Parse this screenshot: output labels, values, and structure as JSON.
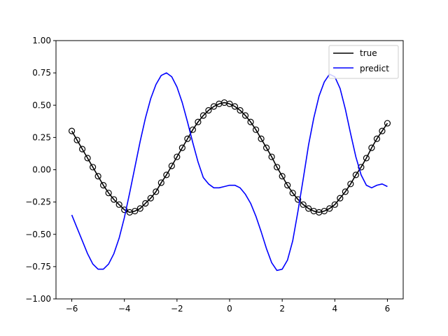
{
  "chart_data": {
    "type": "line",
    "title": "",
    "xlabel": "",
    "ylabel": "",
    "xlim": [
      -6.6,
      6.6
    ],
    "ylim": [
      -1.0,
      1.0
    ],
    "xticks": [
      -6,
      -4,
      -2,
      0,
      2,
      4,
      6
    ],
    "xtick_labels": [
      "−6",
      "−4",
      "−2",
      "0",
      "2",
      "4",
      "6"
    ],
    "yticks": [
      -1.0,
      -0.75,
      -0.5,
      -0.25,
      0.0,
      0.25,
      0.5,
      0.75,
      1.0
    ],
    "ytick_labels": [
      "−1.00",
      "−0.75",
      "−0.50",
      "−0.25",
      "0.00",
      "0.25",
      "0.50",
      "0.75",
      "1.00"
    ],
    "grid": false,
    "legend": "top-right",
    "series": [
      {
        "name": "true",
        "color": "#000000",
        "markers": "open-circle",
        "x": [
          -6.0,
          -5.8,
          -5.6,
          -5.4,
          -5.2,
          -5.0,
          -4.8,
          -4.6,
          -4.4,
          -4.2,
          -4.0,
          -3.8,
          -3.6,
          -3.4,
          -3.2,
          -3.0,
          -2.8,
          -2.6,
          -2.4,
          -2.2,
          -2.0,
          -1.8,
          -1.6,
          -1.4,
          -1.2,
          -1.0,
          -0.8,
          -0.6,
          -0.4,
          -0.2,
          0.0,
          0.2,
          0.4,
          0.6,
          0.8,
          1.0,
          1.2,
          1.4,
          1.6,
          1.8,
          2.0,
          2.2,
          2.4,
          2.6,
          2.8,
          3.0,
          3.2,
          3.4,
          3.6,
          3.8,
          4.0,
          4.2,
          4.4,
          4.6,
          4.8,
          5.0,
          5.2,
          5.4,
          5.6,
          5.8,
          6.0
        ],
        "y": [
          0.3,
          0.23,
          0.16,
          0.09,
          0.02,
          -0.05,
          -0.12,
          -0.18,
          -0.23,
          -0.27,
          -0.31,
          -0.33,
          -0.32,
          -0.3,
          -0.26,
          -0.22,
          -0.17,
          -0.1,
          -0.04,
          0.03,
          0.1,
          0.17,
          0.24,
          0.31,
          0.37,
          0.42,
          0.46,
          0.49,
          0.51,
          0.52,
          0.51,
          0.49,
          0.46,
          0.42,
          0.37,
          0.31,
          0.24,
          0.17,
          0.1,
          0.02,
          -0.05,
          -0.12,
          -0.18,
          -0.23,
          -0.27,
          -0.3,
          -0.32,
          -0.33,
          -0.32,
          -0.3,
          -0.27,
          -0.22,
          -0.17,
          -0.11,
          -0.04,
          0.02,
          0.09,
          0.17,
          0.24,
          0.3,
          0.36
        ]
      },
      {
        "name": "predict",
        "color": "#0000ff",
        "markers": "none",
        "x": [
          -6.0,
          -5.8,
          -5.6,
          -5.4,
          -5.2,
          -5.0,
          -4.8,
          -4.6,
          -4.4,
          -4.2,
          -4.0,
          -3.8,
          -3.6,
          -3.4,
          -3.2,
          -3.0,
          -2.8,
          -2.6,
          -2.4,
          -2.2,
          -2.0,
          -1.8,
          -1.6,
          -1.4,
          -1.2,
          -1.0,
          -0.8,
          -0.6,
          -0.4,
          -0.2,
          0.0,
          0.2,
          0.4,
          0.6,
          0.8,
          1.0,
          1.2,
          1.4,
          1.6,
          1.8,
          2.0,
          2.2,
          2.4,
          2.6,
          2.8,
          3.0,
          3.2,
          3.4,
          3.6,
          3.8,
          4.0,
          4.2,
          4.4,
          4.6,
          4.8,
          5.0,
          5.2,
          5.4,
          5.6,
          5.8,
          6.0
        ],
        "y": [
          -0.35,
          -0.45,
          -0.55,
          -0.65,
          -0.73,
          -0.77,
          -0.77,
          -0.73,
          -0.65,
          -0.53,
          -0.37,
          -0.18,
          0.02,
          0.22,
          0.4,
          0.55,
          0.66,
          0.73,
          0.75,
          0.72,
          0.64,
          0.52,
          0.37,
          0.21,
          0.06,
          -0.06,
          -0.11,
          -0.14,
          -0.14,
          -0.13,
          -0.12,
          -0.12,
          -0.14,
          -0.19,
          -0.26,
          -0.36,
          -0.48,
          -0.61,
          -0.72,
          -0.78,
          -0.77,
          -0.7,
          -0.55,
          -0.32,
          -0.07,
          0.19,
          0.4,
          0.57,
          0.68,
          0.74,
          0.72,
          0.63,
          0.47,
          0.28,
          0.1,
          -0.04,
          -0.12,
          -0.14,
          -0.12,
          -0.11,
          -0.13
        ]
      }
    ]
  }
}
